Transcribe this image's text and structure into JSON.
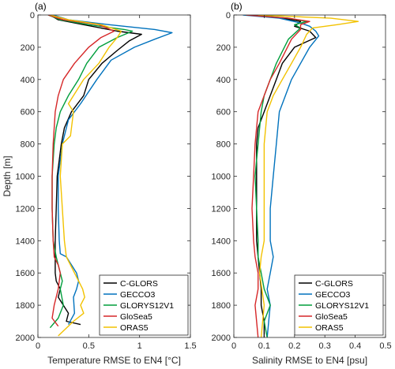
{
  "chart_data": [
    {
      "type": "line",
      "panel_label": "(a)",
      "xlabel": "Temperature RMSE to EN4 [°C]",
      "ylabel": "Depth [m]",
      "xlim": [
        0,
        1.5
      ],
      "ylim": [
        2000,
        0
      ],
      "xticks": [
        "0",
        "0.5",
        "1",
        "1.5"
      ],
      "yticks": [
        "0",
        "200",
        "400",
        "600",
        "800",
        "1000",
        "1200",
        "1400",
        "1600",
        "1800",
        "2000"
      ],
      "grid": false,
      "legend": "bottom-right",
      "series": [
        {
          "name": "C-GLORS",
          "color": "#000000",
          "x": [
            0.12,
            0.2,
            0.45,
            0.78,
            1.02,
            0.9,
            0.78,
            0.63,
            0.5,
            0.45,
            0.33,
            0.26,
            0.23,
            0.21,
            0.19,
            0.18,
            0.17,
            0.17,
            0.17,
            0.17,
            0.18,
            0.22,
            0.2,
            0.25,
            0.3,
            0.28,
            0.42
          ],
          "y": [
            0,
            30,
            60,
            100,
            120,
            160,
            220,
            300,
            400,
            500,
            600,
            700,
            800,
            900,
            1000,
            1200,
            1400,
            1500,
            1550,
            1600,
            1650,
            1700,
            1750,
            1800,
            1850,
            1900,
            1920
          ]
        },
        {
          "name": "GECCO3",
          "color": "#0072BD",
          "x": [
            0.15,
            0.3,
            0.7,
            1.15,
            1.32,
            1.15,
            0.95,
            0.72,
            0.58,
            0.42,
            0.3,
            0.24,
            0.22,
            0.2,
            0.2,
            0.21,
            0.22,
            0.28,
            0.33,
            0.38,
            0.4,
            0.38,
            0.35,
            0.36,
            0.3
          ],
          "y": [
            0,
            30,
            60,
            90,
            110,
            150,
            200,
            280,
            400,
            550,
            650,
            800,
            900,
            1000,
            1200,
            1400,
            1480,
            1500,
            1550,
            1600,
            1650,
            1700,
            1750,
            1850,
            1920
          ]
        },
        {
          "name": "GLORYS12V1",
          "color": "#009E3C",
          "x": [
            0.1,
            0.22,
            0.5,
            0.85,
            0.93,
            0.78,
            0.6,
            0.48,
            0.4,
            0.3,
            0.22,
            0.18,
            0.16,
            0.15,
            0.14,
            0.14,
            0.15,
            0.18,
            0.2,
            0.22,
            0.24,
            0.22,
            0.25,
            0.2,
            0.12
          ],
          "y": [
            0,
            30,
            60,
            90,
            100,
            140,
            200,
            300,
            400,
            500,
            600,
            700,
            800,
            900,
            1000,
            1200,
            1400,
            1500,
            1550,
            1600,
            1650,
            1700,
            1800,
            1880,
            1940
          ]
        },
        {
          "name": "GloSea5",
          "color": "#D62728",
          "x": [
            0.1,
            0.25,
            0.6,
            0.75,
            0.62,
            0.5,
            0.36,
            0.25,
            0.2,
            0.17,
            0.15,
            0.14,
            0.14,
            0.15,
            0.16,
            0.2,
            0.22,
            0.2,
            0.16,
            0.14,
            0.2
          ],
          "y": [
            0,
            30,
            60,
            100,
            140,
            200,
            300,
            400,
            500,
            600,
            800,
            1000,
            1200,
            1400,
            1500,
            1550,
            1600,
            1700,
            1800,
            1880,
            1930
          ]
        },
        {
          "name": "ORAS5",
          "color": "#F2C200",
          "x": [
            0.12,
            0.3,
            0.62,
            0.82,
            0.78,
            0.7,
            0.6,
            0.45,
            0.3,
            0.35,
            0.32,
            0.24,
            0.22,
            0.24,
            0.26,
            0.28,
            0.32,
            0.36,
            0.4,
            0.44,
            0.46,
            0.42,
            0.45,
            0.35,
            0.25,
            0.2
          ],
          "y": [
            0,
            30,
            60,
            100,
            140,
            200,
            300,
            400,
            550,
            600,
            750,
            800,
            1000,
            1200,
            1400,
            1500,
            1550,
            1600,
            1650,
            1700,
            1750,
            1800,
            1850,
            1900,
            1960,
            1990
          ]
        }
      ]
    },
    {
      "type": "line",
      "panel_label": "(b)",
      "xlabel": "Salinity RMSE to EN4 [psu]",
      "ylabel": "",
      "xlim": [
        0,
        0.5
      ],
      "ylim": [
        2000,
        0
      ],
      "xticks": [
        "0",
        "0.1",
        "0.2",
        "0.3",
        "0.4",
        "0.5"
      ],
      "yticks": [
        "0",
        "200",
        "400",
        "600",
        "800",
        "1000",
        "1200",
        "1400",
        "1600",
        "1800",
        "2000"
      ],
      "grid": false,
      "legend": "bottom-right",
      "series": [
        {
          "name": "C-GLORS",
          "color": "#000000",
          "x": [
            0.06,
            0.16,
            0.22,
            0.2,
            0.25,
            0.27,
            0.2,
            0.16,
            0.14,
            0.12,
            0.1,
            0.08,
            0.075,
            0.075,
            0.075,
            0.075,
            0.08,
            0.085,
            0.09,
            0.09,
            0.1,
            0.1
          ],
          "y": [
            0,
            20,
            40,
            70,
            100,
            140,
            200,
            300,
            400,
            500,
            600,
            700,
            800,
            1000,
            1200,
            1400,
            1500,
            1600,
            1700,
            1800,
            1900,
            2000
          ]
        },
        {
          "name": "GECCO3",
          "color": "#0072BD",
          "x": [
            0.03,
            0.15,
            0.22,
            0.25,
            0.27,
            0.28,
            0.25,
            0.22,
            0.19,
            0.17,
            0.15,
            0.14,
            0.13,
            0.12,
            0.12,
            0.13,
            0.12,
            0.11,
            0.12,
            0.11
          ],
          "y": [
            0,
            20,
            50,
            70,
            100,
            130,
            200,
            300,
            400,
            500,
            600,
            800,
            1000,
            1200,
            1400,
            1500,
            1600,
            1700,
            1800,
            2000
          ]
        },
        {
          "name": "GLORYS12V1",
          "color": "#009E3C",
          "x": [
            0.06,
            0.18,
            0.24,
            0.2,
            0.22,
            0.18,
            0.14,
            0.12,
            0.1,
            0.09,
            0.08,
            0.07,
            0.075,
            0.08,
            0.08,
            0.09,
            0.1,
            0.12,
            0.1,
            0.11
          ],
          "y": [
            0,
            20,
            40,
            60,
            80,
            150,
            300,
            400,
            500,
            600,
            800,
            1000,
            1200,
            1400,
            1500,
            1600,
            1700,
            1800,
            1900,
            2000
          ]
        },
        {
          "name": "GloSea5",
          "color": "#D62728",
          "x": [
            0.04,
            0.18,
            0.25,
            0.22,
            0.22,
            0.19,
            0.15,
            0.12,
            0.1,
            0.08,
            0.07,
            0.065,
            0.06,
            0.065,
            0.07,
            0.08,
            0.08,
            0.07,
            0.08
          ],
          "y": [
            0,
            20,
            40,
            60,
            90,
            150,
            300,
            400,
            500,
            600,
            800,
            1000,
            1200,
            1400,
            1500,
            1600,
            1700,
            1800,
            2000
          ]
        },
        {
          "name": "ORAS5",
          "color": "#F2C200",
          "x": [
            0.08,
            0.32,
            0.41,
            0.34,
            0.26,
            0.24,
            0.22,
            0.19,
            0.16,
            0.13,
            0.11,
            0.1,
            0.1,
            0.1,
            0.1,
            0.09,
            0.085,
            0.1,
            0.09
          ],
          "y": [
            0,
            20,
            40,
            60,
            80,
            120,
            200,
            300,
            400,
            500,
            600,
            800,
            1000,
            1200,
            1400,
            1500,
            1600,
            1800,
            2000
          ]
        }
      ]
    }
  ]
}
